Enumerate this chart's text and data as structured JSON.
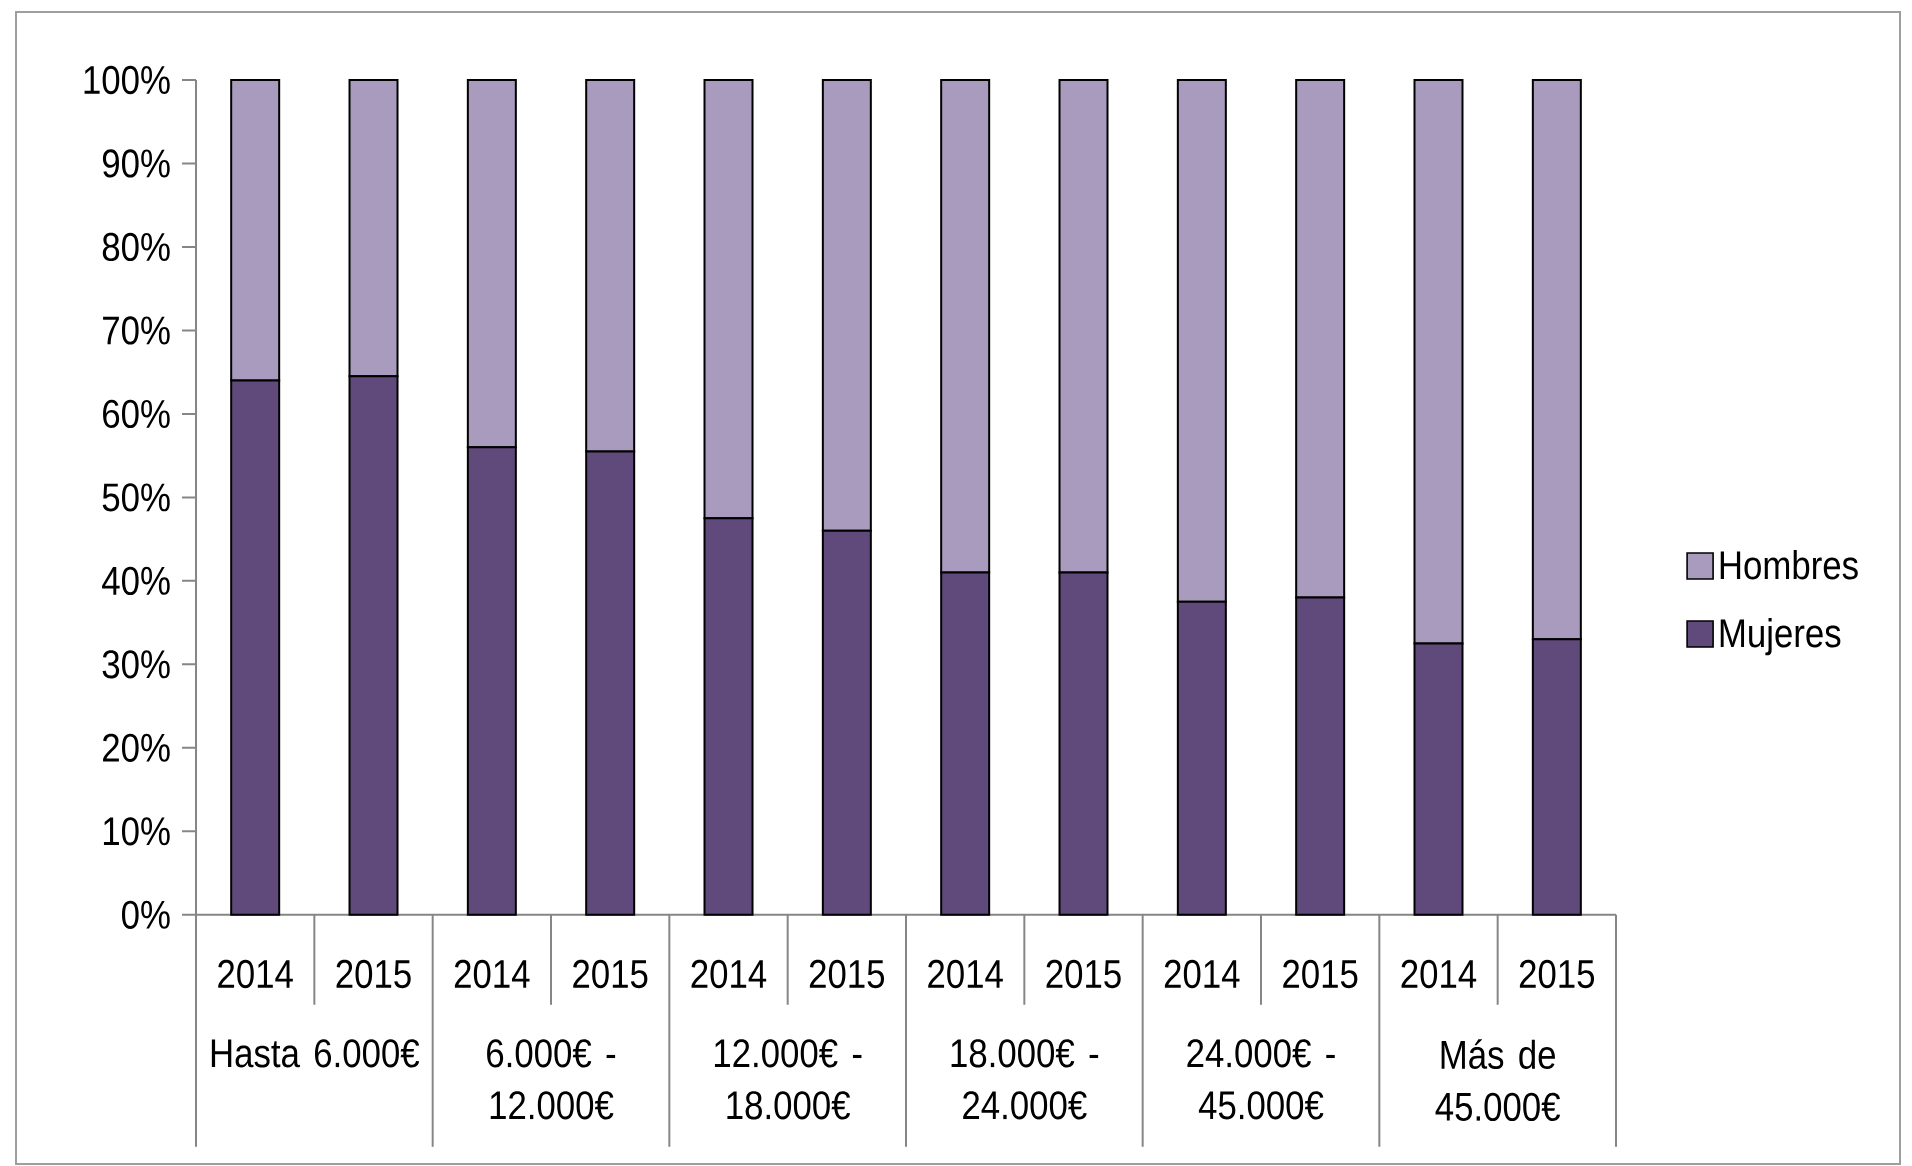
{
  "chart_data": {
    "type": "bar",
    "stacked": true,
    "categories": [
      "2014",
      "2015",
      "2014",
      "2015",
      "2014",
      "2015",
      "2014",
      "2015",
      "2014",
      "2015",
      "2014",
      "2015"
    ],
    "series": [
      {
        "name": "Mujeres",
        "color": "#604a7b",
        "values": [
          64,
          64.5,
          56,
          55.5,
          47.5,
          46,
          41,
          41,
          37.5,
          38,
          32.5,
          33
        ]
      },
      {
        "name": "Hombres",
        "color": "#a99bbd",
        "values": [
          36,
          35.5,
          44,
          44.5,
          52.5,
          54,
          59,
          59,
          62.5,
          62,
          67.5,
          67
        ]
      }
    ],
    "ylim": [
      0,
      100
    ],
    "yticks": [
      {
        "value": 0,
        "label": "0%"
      },
      {
        "value": 10,
        "label": "10%"
      },
      {
        "value": 20,
        "label": "20%"
      },
      {
        "value": 30,
        "label": "30%"
      },
      {
        "value": 40,
        "label": "40%"
      },
      {
        "value": 50,
        "label": "50%"
      },
      {
        "value": 60,
        "label": "60%"
      },
      {
        "value": 70,
        "label": "70%"
      },
      {
        "value": 80,
        "label": "80%"
      },
      {
        "value": 90,
        "label": "90%"
      },
      {
        "value": 100,
        "label": "100%"
      }
    ],
    "annotations": [
      "Hasta 6.000€",
      "6.000€ - 12.000€",
      "12.000€ - 18.000€",
      "18.000€ - 24.000€",
      "24.000€ - 45.000€",
      "Más de 45.000€"
    ],
    "legend": "right"
  }
}
